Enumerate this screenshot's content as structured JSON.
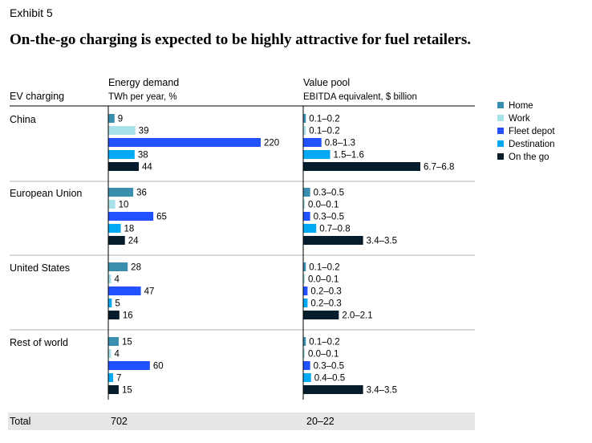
{
  "exhibit": "Exhibit 5",
  "title": "On-the-go charging is expected to be highly attractive for fuel retailers.",
  "row_header": "EV charging",
  "colors": {
    "Home": "#3a8fae",
    "Work": "#a8e1ea",
    "Fleet depot": "#2251ff",
    "Destination": "#00a9f4",
    "On the go": "#051c2c",
    "total_band": "#e6e6e6",
    "divider": "#b3b3b3"
  },
  "chart_data": [
    {
      "type": "bar",
      "orientation": "horizontal",
      "title": "Energy demand",
      "subtitle": "TWh per year, %",
      "categories": [
        "China",
        "European Union",
        "United  States",
        "Rest of world"
      ],
      "series": [
        {
          "name": "Home",
          "values": [
            9,
            36,
            28,
            15
          ],
          "labels": [
            "9",
            "36",
            "28",
            "15"
          ]
        },
        {
          "name": "Work",
          "values": [
            39,
            10,
            4,
            4
          ],
          "labels": [
            "39",
            "10",
            "4",
            "4"
          ]
        },
        {
          "name": "Fleet depot",
          "values": [
            220,
            65,
            47,
            60
          ],
          "labels": [
            "220",
            "65",
            "47",
            "60"
          ]
        },
        {
          "name": "Destination",
          "values": [
            38,
            18,
            5,
            7
          ],
          "labels": [
            "38",
            "18",
            "5",
            "7"
          ]
        },
        {
          "name": "On the go",
          "values": [
            44,
            24,
            16,
            15
          ],
          "labels": [
            "44",
            "24",
            "16",
            "15"
          ]
        }
      ],
      "total_label": "702"
    },
    {
      "type": "bar",
      "orientation": "horizontal",
      "title": "Value pool",
      "subtitle": "EBITDA equivalent, $ billion",
      "categories": [
        "China",
        "European Union",
        "United  States",
        "Rest of world"
      ],
      "series": [
        {
          "name": "Home",
          "values": [
            0.15,
            0.4,
            0.15,
            0.15
          ],
          "labels": [
            "0.1–0.2",
            "0.3–0.5",
            "0.1–0.2",
            "0.1–0.2"
          ]
        },
        {
          "name": "Work",
          "values": [
            0.15,
            0.05,
            0.05,
            0.05
          ],
          "labels": [
            "0.1–0.2",
            "0.0–0.1",
            "0.0–0.1",
            "0.0–0.1"
          ]
        },
        {
          "name": "Fleet depot",
          "values": [
            1.05,
            0.4,
            0.25,
            0.4
          ],
          "labels": [
            "0.8–1.3",
            "0.3–0.5",
            "0.2–0.3",
            "0.3–0.5"
          ]
        },
        {
          "name": "Destination",
          "values": [
            1.55,
            0.75,
            0.25,
            0.45
          ],
          "labels": [
            "1.5–1.6",
            "0.7–0.8",
            "0.2–0.3",
            "0.4–0.5"
          ]
        },
        {
          "name": "On the go",
          "values": [
            6.75,
            3.45,
            2.05,
            3.45
          ],
          "labels": [
            "6.7–6.8",
            "3.4–3.5",
            "2.0–2.1",
            "3.4–3.5"
          ]
        }
      ],
      "total_label": "20–22"
    }
  ],
  "legend": [
    "Home",
    "Work",
    "Fleet depot",
    "Destination",
    "On the go"
  ],
  "total_label": "Total"
}
